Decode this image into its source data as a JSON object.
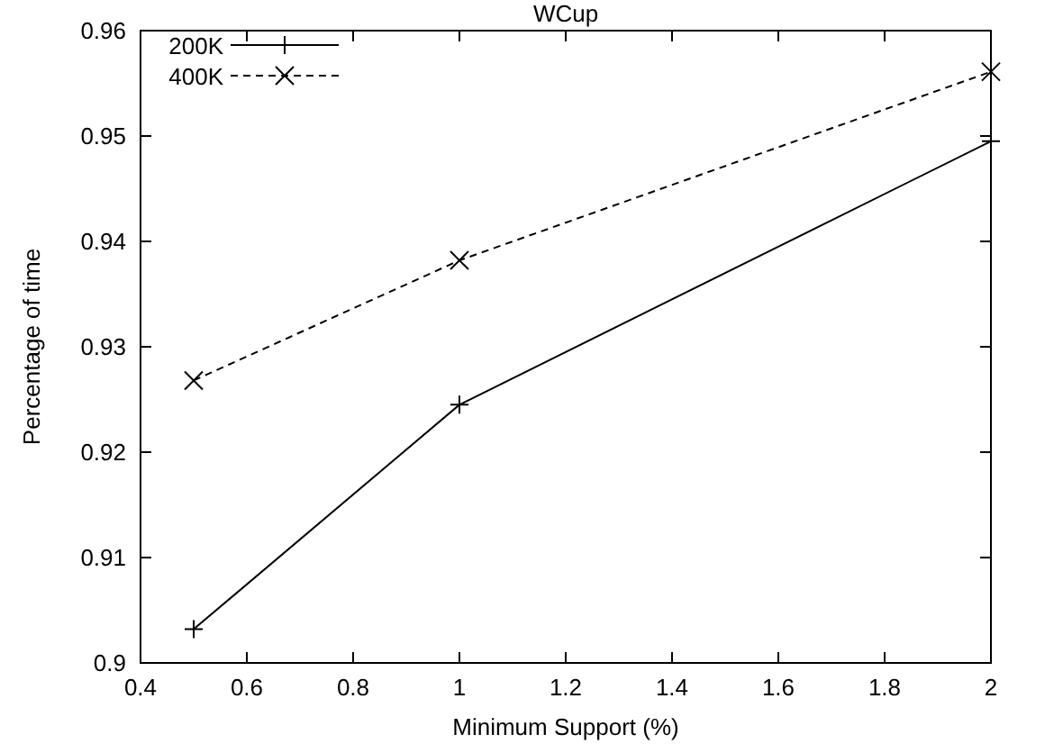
{
  "chart_data": {
    "type": "line",
    "title": "WCup",
    "xlabel": "Minimum Support (%)",
    "ylabel": "Percentage of time",
    "x": [
      0.5,
      1,
      2
    ],
    "series": [
      {
        "name": "200K",
        "color": "#000000",
        "values": [
          0.9032,
          0.9245,
          0.9495
        ],
        "marker": "cross",
        "line_style": "solid"
      },
      {
        "name": "400K",
        "color": "#000000",
        "values": [
          0.9268,
          0.9382,
          0.9561
        ],
        "marker": "x",
        "line_style": "dashed"
      }
    ],
    "xlim": [
      0.4,
      2
    ],
    "xticks": [
      0.4,
      0.6,
      0.8,
      1,
      1.2,
      1.4,
      1.6,
      1.8,
      2
    ],
    "ylim": [
      0.9,
      0.96
    ],
    "yticks": [
      {
        "value": 0.9,
        "label": "0.9"
      },
      0.91,
      0.92,
      0.93,
      0.94,
      0.95,
      0.96
    ],
    "grid": false,
    "legend": "top left"
  }
}
